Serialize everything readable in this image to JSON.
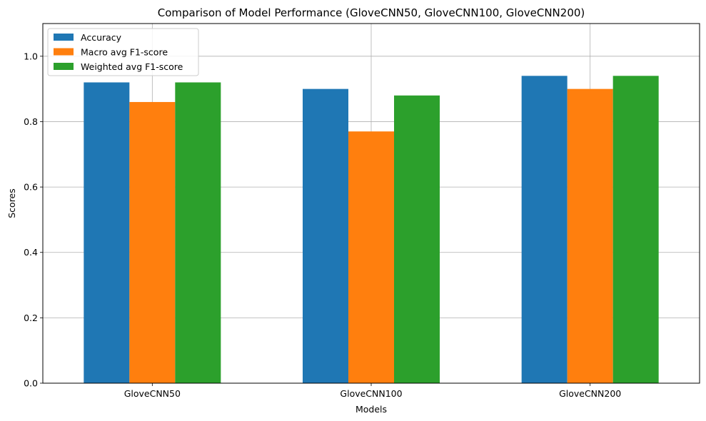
{
  "chart_data": {
    "type": "bar",
    "title": "Comparison of Model Performance (GloveCNN50, GloveCNN100, GloveCNN200)",
    "xlabel": "Models",
    "ylabel": "Scores",
    "categories": [
      "GloveCNN50",
      "GloveCNN100",
      "GloveCNN200"
    ],
    "series": [
      {
        "name": "Accuracy",
        "values": [
          0.92,
          0.9,
          0.94
        ],
        "color": "#1f77b4"
      },
      {
        "name": "Macro avg F1-score",
        "values": [
          0.86,
          0.77,
          0.9
        ],
        "color": "#ff7f0e"
      },
      {
        "name": "Weighted avg F1-score",
        "values": [
          0.92,
          0.88,
          0.94
        ],
        "color": "#2ca02c"
      }
    ],
    "ylim": [
      0,
      1.1
    ],
    "yticks": [
      "0.0",
      "0.2",
      "0.4",
      "0.6",
      "0.8",
      "1.0"
    ],
    "grid": true,
    "legend_position": "top-left"
  }
}
